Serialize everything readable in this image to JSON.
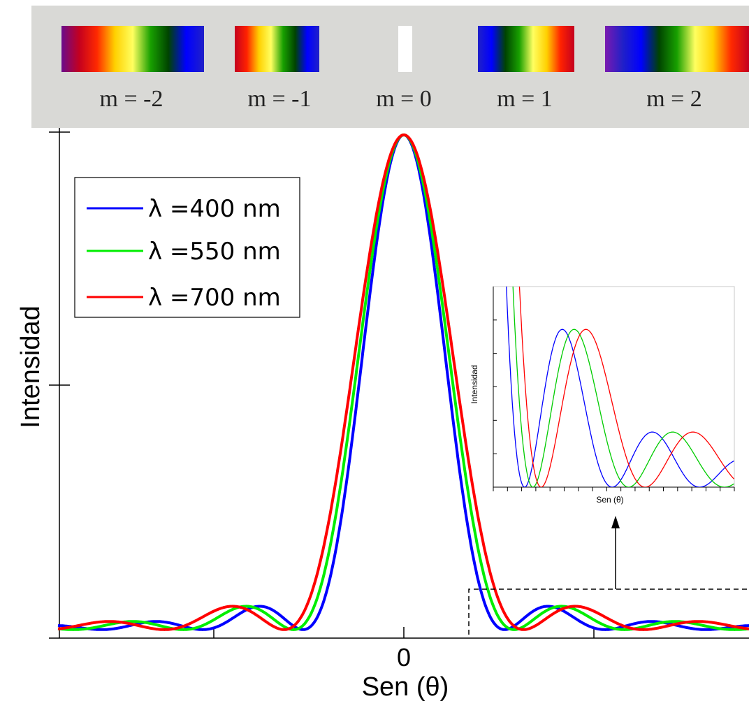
{
  "spectra": {
    "background": "#d9d9d6",
    "orders": [
      {
        "label": "m = -2",
        "kind": "spectrum",
        "stops": [
          "#6a0a8c",
          "#c4001f",
          "#ff2a00",
          "#ffd000",
          "#ffff60",
          "#18a000",
          "#004400",
          "#0000ff",
          "#2020c8"
        ]
      },
      {
        "label": "m = -1",
        "kind": "spectrum",
        "stops": [
          "#c4001f",
          "#ff2200",
          "#ffd000",
          "#ffff60",
          "#18a000",
          "#004400",
          "#0000ff",
          "#2020c8"
        ]
      },
      {
        "label": "m = 0",
        "kind": "white",
        "stops": [
          "#ffffff",
          "#ffffff"
        ]
      },
      {
        "label": "m = 1",
        "kind": "spectrum",
        "stops": [
          "#2020c8",
          "#0000ff",
          "#004400",
          "#18a000",
          "#ffff60",
          "#ffd000",
          "#ff2200",
          "#c4001f"
        ]
      },
      {
        "label": "m = 2",
        "kind": "spectrum",
        "stops": [
          "#7a1ab0",
          "#2020c8",
          "#0000ff",
          "#004400",
          "#18a000",
          "#ffff60",
          "#ffd000",
          "#ff2a00",
          "#c4001f"
        ]
      }
    ]
  },
  "chart_data": [
    {
      "type": "line",
      "name": "main",
      "xlabel": "Sen (θ)",
      "ylabel": "Intensidad",
      "x_tick_labels": [
        "",
        "0",
        ""
      ],
      "x_ticks": [
        -1,
        0,
        1
      ],
      "xlim": [
        -1.8,
        1.8
      ],
      "ylim": [
        0,
        1
      ],
      "y_ticks": [
        0.5,
        1.0
      ],
      "series": [
        {
          "name": "λ =400 nm",
          "color": "#0000ff",
          "wavelength_nm": 400
        },
        {
          "name": "λ =550 nm",
          "color": "#00ee00",
          "wavelength_nm": 550
        },
        {
          "name": "λ =700 nm",
          "color": "#ff0000",
          "wavelength_nm": 700
        }
      ],
      "model": "I = sinc^2(x/w) with peak 1.0 at x = 0; first minima at x = ±0.53 (400 nm), ±0.58 (550 nm), ±0.63 (700 nm)",
      "first_zero_sin_theta": {
        "400": 0.53,
        "550": 0.58,
        "700": 0.63
      },
      "legend_placement": "top-left",
      "annotation": "dashed rectangle from x = 0.34 to beyond right edge, y = 0 to 0.09, arrow pointing up to inset"
    },
    {
      "type": "line",
      "name": "inset",
      "xlabel": "Sen (θ)",
      "ylabel": "Intensidad",
      "xlim": [
        0.34,
        1.8
      ],
      "ylim": [
        0,
        0.06
      ],
      "series": [
        {
          "name": "λ =400 nm",
          "color": "#0000ff",
          "secondary_peaks": [
            0.047,
            0.017,
            0.008
          ]
        },
        {
          "name": "λ =550 nm",
          "color": "#00cc00",
          "secondary_peaks": [
            0.047,
            0.017,
            0.008
          ]
        },
        {
          "name": "λ =700 nm",
          "color": "#ff0000",
          "secondary_peaks": [
            0.047,
            0.017,
            0.008
          ]
        }
      ]
    }
  ]
}
